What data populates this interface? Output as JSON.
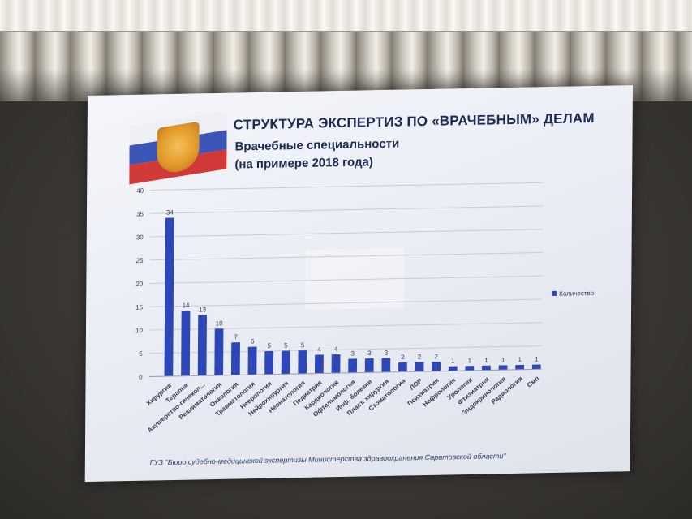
{
  "slide": {
    "title": "СТРУКТУРА ЭКСПЕРТИЗ ПО «ВРАЧЕБНЫМ» ДЕЛАМ",
    "subtitle1": "Врачебные специальности",
    "subtitle2": "(на примере 2018 года)",
    "footer": "ГУЗ \"Бюро судебно-медицинской экспертизы Министерства здравоохранения Саратовской области\""
  },
  "chart_data": {
    "type": "bar",
    "categories": [
      "Хирургия",
      "Терапия",
      "Акушерство-гинекол...",
      "Реаниматология",
      "Онкология",
      "Травматология",
      "Неврология",
      "Нейрохирургия",
      "Неонатология",
      "Педиатрия",
      "Кардиология",
      "Офтальмология",
      "Инф. болезни",
      "Пласт. хирургия",
      "Стоматология",
      "ЛОР",
      "Психиатрия",
      "Нефрология",
      "Урология",
      "Фтизиатрия",
      "Эндокринология",
      "Радиология",
      "Смп"
    ],
    "series": [
      {
        "name": "Количество",
        "values": [
          34,
          14,
          13,
          10,
          7,
          6,
          5,
          5,
          5,
          4,
          4,
          3,
          3,
          3,
          2,
          2,
          2,
          1,
          1,
          1,
          1,
          1,
          1
        ]
      }
    ],
    "ylim": [
      0,
      40
    ],
    "yticks": [
      0,
      5,
      10,
      15,
      20,
      25,
      30,
      35,
      40
    ],
    "grid": true,
    "legend": "right",
    "colors": {
      "bar": "#2e47b8",
      "grid": "#c9ccd6",
      "text": "#333a55"
    }
  }
}
